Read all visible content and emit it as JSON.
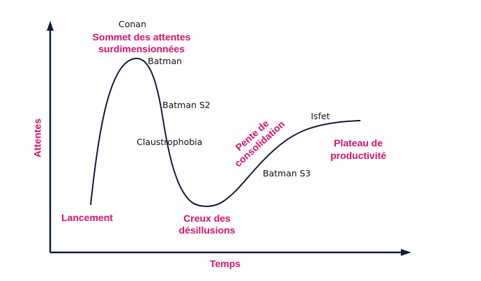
{
  "axes": {
    "y_label": "Attentes",
    "x_label": "Temps"
  },
  "phases": {
    "launch": "Lancement",
    "peak_line1": "Sommet des attentes",
    "peak_line2": "surdimensionnées",
    "trough_line1": "Creux des",
    "trough_line2": "désillusions",
    "slope_line1": "Pente de",
    "slope_line2": "consolidation",
    "plateau_line1": "Plateau de",
    "plateau_line2": "productivité"
  },
  "items": {
    "conan": "Conan",
    "batman": "Batman",
    "batman_s2": "Batman S2",
    "claustrophobia": "Claustrophobia",
    "batman_s3": "Batman S3",
    "isfet": "Isfet"
  },
  "colors": {
    "accent": "#d6106e",
    "curve": "#0f1c3a"
  }
}
